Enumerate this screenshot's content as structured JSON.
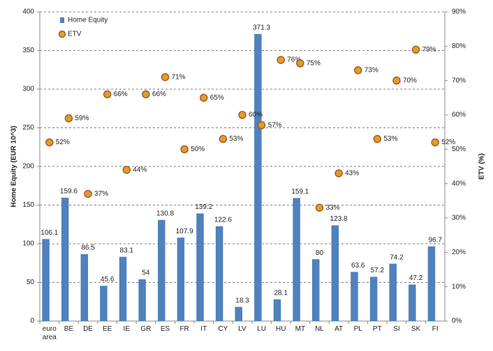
{
  "chart_data": {
    "type": "bar",
    "categories": [
      "euro area",
      "BE",
      "DE",
      "EE",
      "IE",
      "GR",
      "ES",
      "FR",
      "IT",
      "CY",
      "LV",
      "LU",
      "HU",
      "MT",
      "NL",
      "AT",
      "PL",
      "PT",
      "SI",
      "SK",
      "FI"
    ],
    "series": [
      {
        "name": "Home Equity",
        "type": "bar",
        "color": "#4f81bd",
        "values": [
          106.1,
          159.6,
          86.5,
          45.6,
          83.1,
          54,
          130.8,
          107.9,
          139.2,
          122.6,
          18.3,
          371.3,
          28.1,
          159.1,
          80,
          123.8,
          63.6,
          57.2,
          74.2,
          47.2,
          96.7
        ]
      },
      {
        "name": "ETV",
        "type": "scatter",
        "axis": "y2",
        "color": "#d9a127",
        "values": [
          52,
          59,
          37,
          66,
          44,
          66,
          71,
          50,
          65,
          53,
          60,
          57,
          76,
          75,
          33,
          43,
          73,
          53,
          70,
          79,
          52
        ],
        "value_labels": [
          "52%",
          "59%",
          "37%",
          "66%",
          "44%",
          "66%",
          "71%",
          "50%",
          "65%",
          "53%",
          "60%",
          "57%",
          "76%",
          "75%",
          "33%",
          "43%",
          "73%",
          "53%",
          "70%",
          "79%",
          "52%"
        ]
      }
    ],
    "ylabel": "Home Equity    (EUR  10^3)",
    "y2label": "ETV (%)",
    "ylim": [
      0,
      400
    ],
    "yticks": [
      0,
      50,
      100,
      150,
      200,
      250,
      300,
      350,
      400
    ],
    "y2lim": [
      0,
      90
    ],
    "y2ticks": [
      {
        "value": 0,
        "label": "0%"
      },
      {
        "value": 10,
        "label": "10%"
      },
      {
        "value": 20,
        "label": "20%"
      },
      {
        "value": 30,
        "label": "30%"
      },
      {
        "value": 40,
        "label": "40%"
      },
      {
        "value": 50,
        "label": "50%"
      },
      {
        "value": 60,
        "label": "60%"
      },
      {
        "value": 70,
        "label": "70%"
      },
      {
        "value": 80,
        "label": "80%"
      },
      {
        "value": 90,
        "label": "90%"
      }
    ],
    "grid": true,
    "legend": "top-left"
  }
}
